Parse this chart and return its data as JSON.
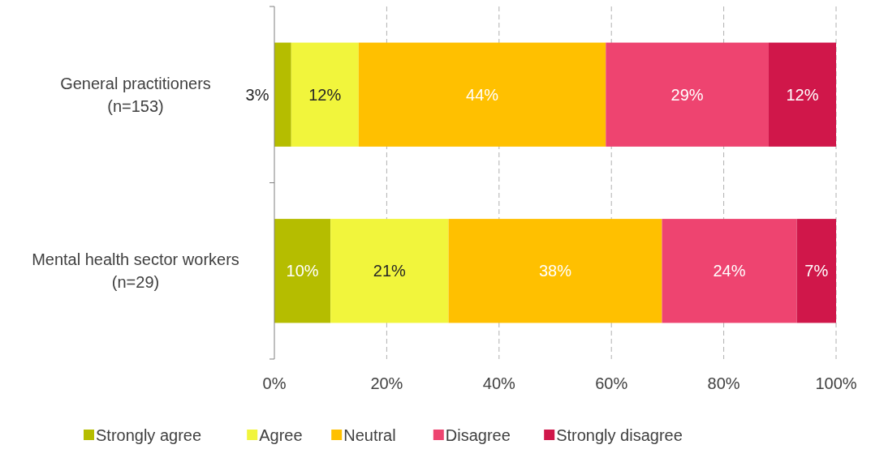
{
  "chart_data": {
    "type": "bar",
    "orientation": "horizontal",
    "stacked": true,
    "categories": [
      "General practitioners\n(n=153)",
      "Mental health sector workers\n(n=29)"
    ],
    "series": [
      {
        "name": "Strongly agree",
        "color": "#b5bd00",
        "values": [
          3,
          10
        ],
        "value_labels": [
          "3%",
          "10%"
        ]
      },
      {
        "name": "Agree",
        "color": "#f1f53c",
        "values": [
          12,
          21
        ],
        "value_labels": [
          "12%",
          "21%"
        ]
      },
      {
        "name": "Neutral",
        "color": "#ffc000",
        "values": [
          44,
          38
        ],
        "value_labels": [
          "44%",
          "38%"
        ]
      },
      {
        "name": "Disagree",
        "color": "#ee4470",
        "values": [
          29,
          24
        ],
        "value_labels": [
          "29%",
          "24%"
        ]
      },
      {
        "name": "Strongly disagree",
        "color": "#d0174a",
        "values": [
          12,
          7
        ],
        "value_labels": [
          "12%",
          "7%"
        ]
      }
    ],
    "xlim": [
      0,
      100
    ],
    "xticks": [
      {
        "value": 0,
        "label": "0%"
      },
      {
        "value": 20,
        "label": "20%"
      },
      {
        "value": 40,
        "label": "40%"
      },
      {
        "value": 60,
        "label": "60%"
      },
      {
        "value": 80,
        "label": "80%"
      },
      {
        "value": 100,
        "label": "100%"
      }
    ],
    "grid": "x",
    "legend": "bottom"
  }
}
